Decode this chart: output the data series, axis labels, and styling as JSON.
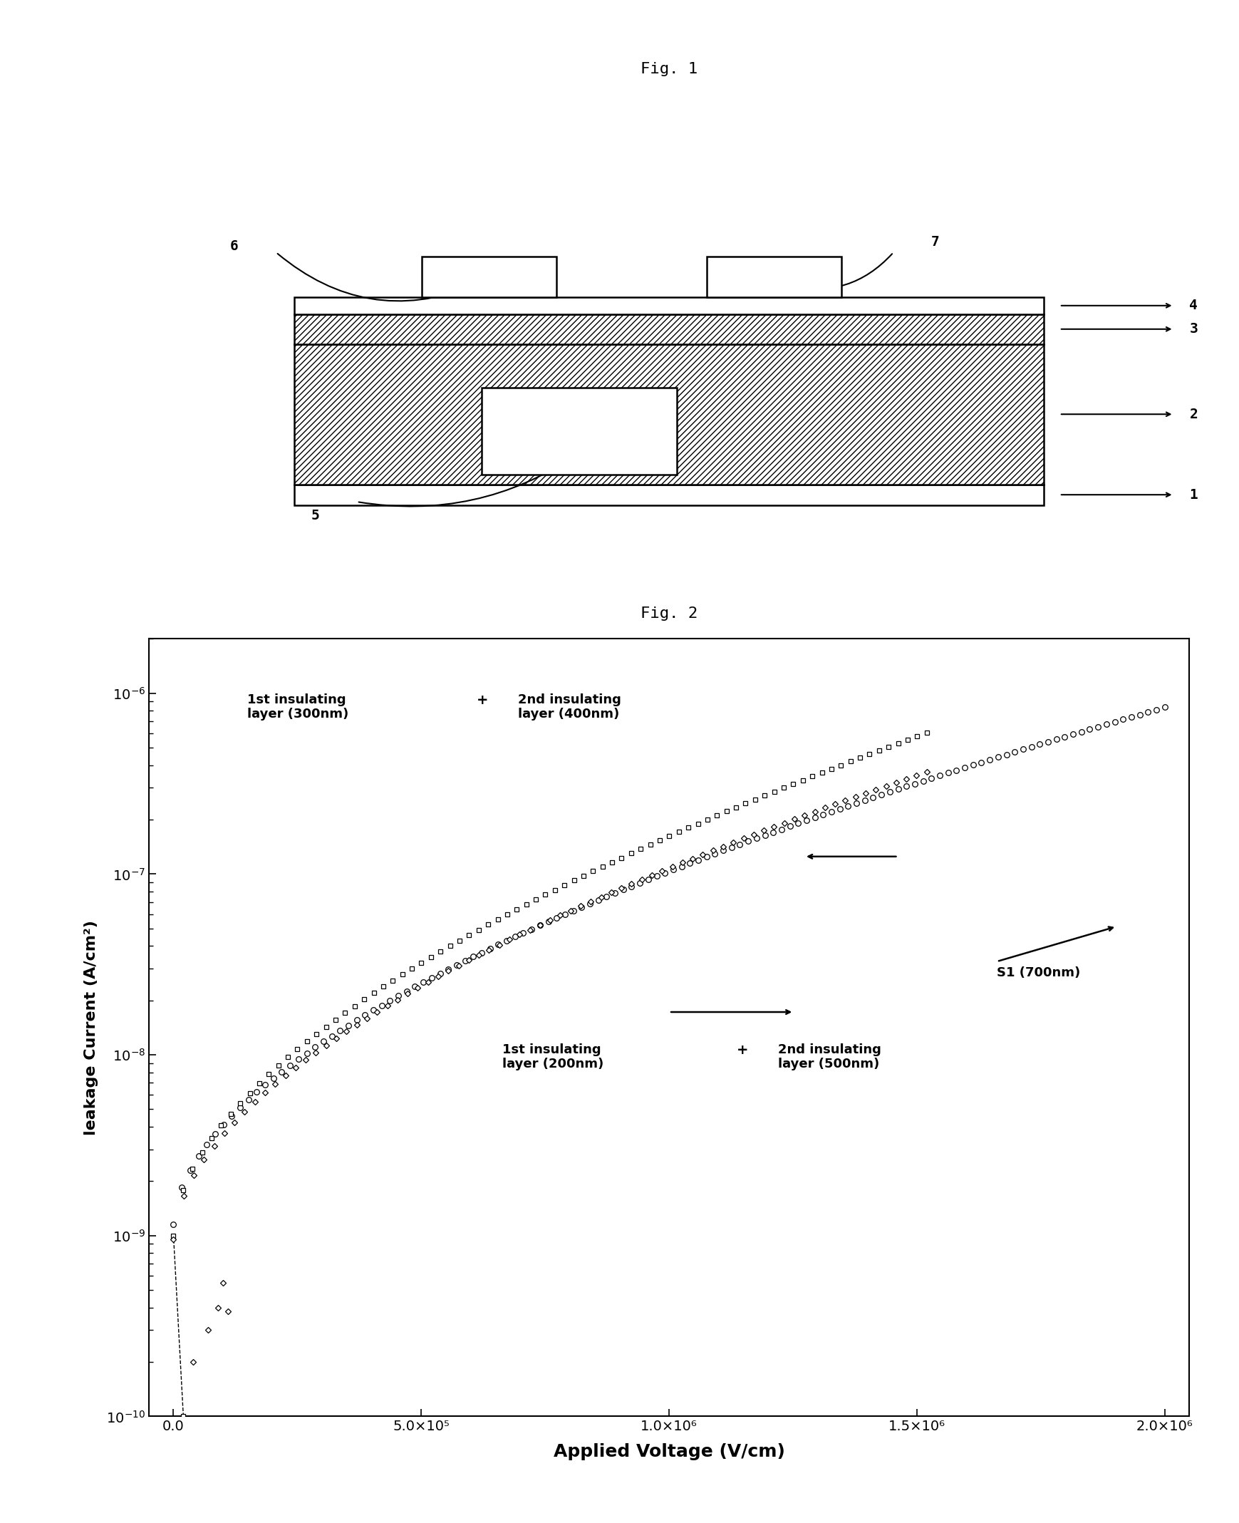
{
  "fig1_title": "Fig. 1",
  "fig2_title": "Fig. 2",
  "fig2_xlabel": "Applied Voltage (V/cm)",
  "fig2_ylabel": "leakage Current (A/cm²)",
  "fig2_xlim": [
    0,
    2050000.0
  ],
  "fig2_ylim": [
    1e-10,
    2e-06
  ],
  "fig2_xticks": [
    0,
    500000.0,
    1000000.0,
    1500000.0,
    2000000.0
  ],
  "fig2_xtick_labels": [
    "0.0",
    "5.0×10⁵",
    "1.0×10⁶",
    "1.5×10⁶",
    "2.0×10⁶"
  ],
  "s1_label": "S1 (700nm)",
  "background_color": "#ffffff"
}
